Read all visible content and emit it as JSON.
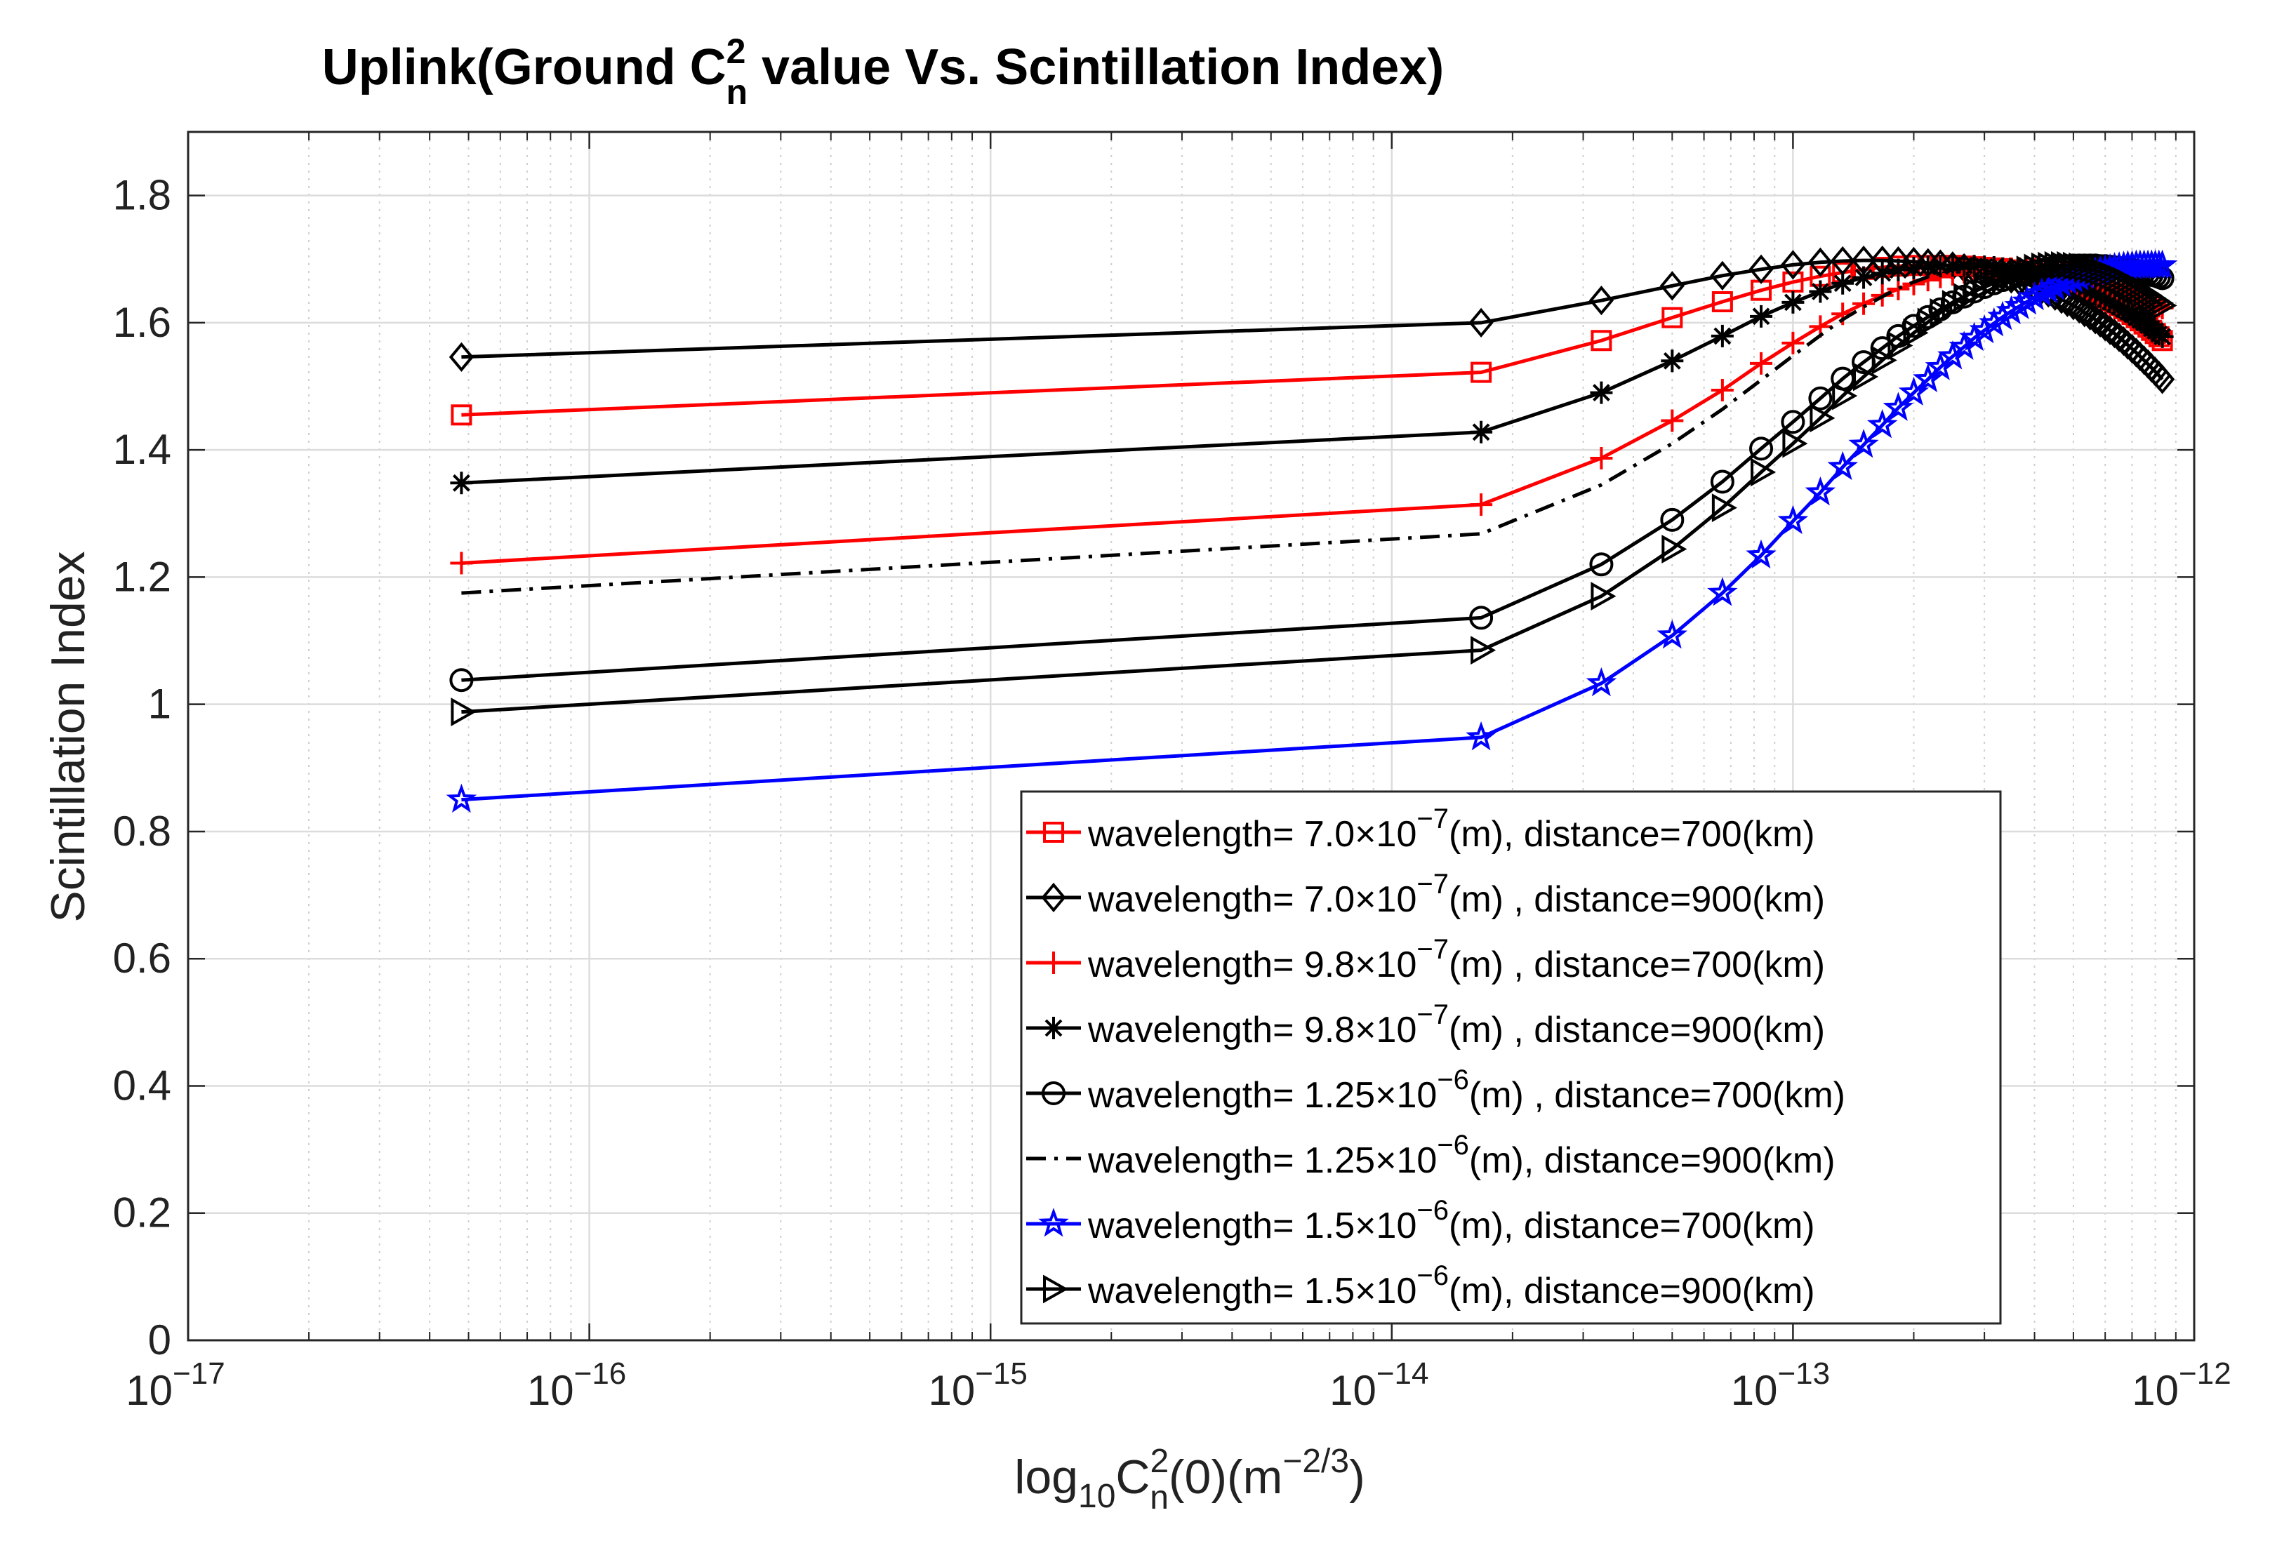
{
  "chart_data": {
    "type": "line",
    "title": {
      "main": "Uplink(Ground C",
      "sup": "2",
      "sub": "n",
      "rest": " value Vs. Scintillation Index)"
    },
    "xlabel": {
      "pre": "log",
      "sub1": "10",
      "mid": "C",
      "sup": "2",
      "sub2": "n",
      "mid2": "(0)(m",
      "sup2": "−2/3",
      "post": ")"
    },
    "ylabel": "Scintillation Index",
    "xscale": "log",
    "xlim": [
      1e-17,
      1e-12
    ],
    "ylim": [
      0,
      1.9
    ],
    "grid": true,
    "legend_position": "bottom-right",
    "x_ticks": [
      {
        "value": 1e-17,
        "base": "10",
        "exp": "−17"
      },
      {
        "value": 1e-16,
        "base": "10",
        "exp": "−16"
      },
      {
        "value": 1e-15,
        "base": "10",
        "exp": "−15"
      },
      {
        "value": 1e-14,
        "base": "10",
        "exp": "−14"
      },
      {
        "value": 1e-13,
        "base": "10",
        "exp": "−13"
      },
      {
        "value": 1e-12,
        "base": "10",
        "exp": "−12"
      }
    ],
    "y_ticks": [
      {
        "value": 0,
        "label": "0"
      },
      {
        "value": 0.2,
        "label": "0.2"
      },
      {
        "value": 0.4,
        "label": "0.4"
      },
      {
        "value": 0.6,
        "label": "0.6"
      },
      {
        "value": 0.8,
        "label": "0.8"
      },
      {
        "value": 1.0,
        "label": "1"
      },
      {
        "value": 1.2,
        "label": "1.2"
      },
      {
        "value": 1.4,
        "label": "1.4"
      },
      {
        "value": 1.6,
        "label": "1.6"
      },
      {
        "value": 1.8,
        "label": "1.8"
      }
    ],
    "x": [
      4.8e-17,
      1.67e-14,
      3.33e-14,
      5e-14,
      6.67e-14,
      8.33e-14,
      1e-13,
      1.17e-13,
      1.33e-13,
      1.5e-13,
      1.67e-13,
      1.83e-13,
      2e-13,
      2.17e-13,
      2.33e-13,
      2.5e-13,
      2.67e-13,
      2.83e-13,
      3e-13,
      3.17e-13,
      3.33e-13,
      3.5e-13,
      3.67e-13,
      3.83e-13,
      4e-13,
      4.17e-13,
      4.33e-13,
      4.5e-13,
      4.67e-13,
      4.83e-13,
      5e-13,
      5.17e-13,
      5.33e-13,
      5.5e-13,
      5.67e-13,
      5.83e-13,
      6e-13,
      6.17e-13,
      6.33e-13,
      6.5e-13,
      6.67e-13,
      6.83e-13,
      7e-13,
      7.17e-13,
      7.33e-13,
      7.5e-13,
      7.67e-13,
      7.83e-13,
      8e-13,
      8.17e-13,
      8.33e-13
    ],
    "series": [
      {
        "name": "wavelength= 7.0×10⁻⁷(m), distance=700(km)",
        "legend": {
          "a": "wavelength= 7.0×10",
          "exp": "−7",
          "b": "(m), distance=700(km)"
        },
        "color": "#ff0000",
        "marker": "square",
        "dash": "solid",
        "values": [
          1.455,
          1.522,
          1.572,
          1.608,
          1.633,
          1.651,
          1.664,
          1.673,
          1.679,
          1.684,
          1.687,
          1.689,
          1.69,
          1.69,
          1.69,
          1.69,
          1.689,
          1.688,
          1.687,
          1.686,
          1.685,
          1.683,
          1.681,
          1.679,
          1.677,
          1.675,
          1.672,
          1.67,
          1.667,
          1.664,
          1.661,
          1.658,
          1.654,
          1.651,
          1.647,
          1.643,
          1.639,
          1.635,
          1.631,
          1.627,
          1.622,
          1.618,
          1.613,
          1.608,
          1.603,
          1.598,
          1.593,
          1.588,
          1.583,
          1.578,
          1.572
        ]
      },
      {
        "name": "wavelength= 7.0×10⁻⁷(m) , distance=900(km)",
        "legend": {
          "a": "wavelength= 7.0×10",
          "exp": "−7",
          "b": "(m) , distance=900(km)"
        },
        "color": "#000000",
        "marker": "diamond",
        "dash": "solid",
        "values": [
          1.546,
          1.6,
          1.635,
          1.658,
          1.674,
          1.684,
          1.691,
          1.695,
          1.697,
          1.698,
          1.698,
          1.697,
          1.696,
          1.694,
          1.692,
          1.689,
          1.686,
          1.683,
          1.68,
          1.677,
          1.673,
          1.669,
          1.665,
          1.661,
          1.656,
          1.652,
          1.647,
          1.642,
          1.637,
          1.632,
          1.627,
          1.622,
          1.616,
          1.611,
          1.605,
          1.6,
          1.594,
          1.588,
          1.583,
          1.577,
          1.571,
          1.565,
          1.559,
          1.553,
          1.547,
          1.541,
          1.535,
          1.529,
          1.523,
          1.517,
          1.511
        ]
      },
      {
        "name": "wavelength= 9.8×10⁻⁷(m) , distance=700(km)",
        "legend": {
          "a": "wavelength= 9.8×10",
          "exp": "−7",
          "b": "(m) , distance=700(km)"
        },
        "color": "#ff0000",
        "marker": "plus",
        "dash": "solid",
        "values": [
          1.222,
          1.314,
          1.387,
          1.446,
          1.494,
          1.536,
          1.568,
          1.594,
          1.614,
          1.63,
          1.643,
          1.653,
          1.661,
          1.667,
          1.672,
          1.676,
          1.679,
          1.681,
          1.683,
          1.684,
          1.685,
          1.685,
          1.685,
          1.685,
          1.684,
          1.683,
          1.682,
          1.681,
          1.68,
          1.678,
          1.676,
          1.674,
          1.672,
          1.67,
          1.668,
          1.666,
          1.663,
          1.661,
          1.658,
          1.656,
          1.653,
          1.65,
          1.647,
          1.644,
          1.641,
          1.638,
          1.635,
          1.632,
          1.629,
          1.626,
          1.623
        ]
      },
      {
        "name": "wavelength= 9.8×10⁻⁷(m)  , distance=900(km)",
        "legend": {
          "a": "wavelength= 9.8×10",
          "exp": "−7",
          "b": "(m)  , distance=900(km)"
        },
        "color": "#000000",
        "marker": "asterisk",
        "dash": "solid",
        "values": [
          1.348,
          1.428,
          1.49,
          1.54,
          1.579,
          1.61,
          1.632,
          1.649,
          1.662,
          1.671,
          1.678,
          1.683,
          1.686,
          1.688,
          1.689,
          1.69,
          1.69,
          1.689,
          1.688,
          1.687,
          1.685,
          1.683,
          1.681,
          1.679,
          1.677,
          1.674,
          1.671,
          1.668,
          1.665,
          1.662,
          1.659,
          1.655,
          1.652,
          1.648,
          1.645,
          1.641,
          1.637,
          1.633,
          1.629,
          1.625,
          1.621,
          1.617,
          1.613,
          1.608,
          1.604,
          1.6,
          1.596,
          1.591,
          1.587,
          1.582,
          1.578
        ]
      },
      {
        "name": "wavelength= 1.25×10⁻⁶(m) , distance=700(km)",
        "legend": {
          "a": "wavelength= 1.25×10",
          "exp": "−6",
          "b": "(m) , distance=700(km)"
        },
        "color": "#000000",
        "marker": "circle",
        "dash": "solid",
        "values": [
          1.038,
          1.136,
          1.22,
          1.29,
          1.35,
          1.402,
          1.444,
          1.481,
          1.512,
          1.538,
          1.56,
          1.579,
          1.595,
          1.609,
          1.621,
          1.632,
          1.641,
          1.649,
          1.656,
          1.662,
          1.667,
          1.671,
          1.675,
          1.678,
          1.681,
          1.683,
          1.685,
          1.687,
          1.688,
          1.689,
          1.69,
          1.69,
          1.69,
          1.69,
          1.69,
          1.689,
          1.689,
          1.688,
          1.687,
          1.686,
          1.685,
          1.684,
          1.683,
          1.682,
          1.68,
          1.679,
          1.677,
          1.675,
          1.674,
          1.672,
          1.67
        ]
      },
      {
        "name": "wavelength= 1.25×10⁻⁶(m), distance=900(km)",
        "legend": {
          "a": "wavelength= 1.25×10",
          "exp": "−6",
          "b": "(m), distance=900(km)"
        },
        "color": "#000000",
        "marker": "none",
        "dash": "dashdot",
        "values": [
          1.175,
          1.268,
          1.345,
          1.41,
          1.464,
          1.51,
          1.548,
          1.58,
          1.605,
          1.625,
          1.641,
          1.654,
          1.664,
          1.672,
          1.678,
          1.683,
          1.686,
          1.689,
          1.69,
          1.691,
          1.691,
          1.691,
          1.69,
          1.689,
          1.688,
          1.686,
          1.684,
          1.682,
          1.68,
          1.677,
          1.674,
          1.671,
          1.668,
          1.665,
          1.662,
          1.658,
          1.655,
          1.651,
          1.648,
          1.644,
          1.64,
          1.636,
          1.632,
          1.628,
          1.624,
          1.62,
          1.616,
          1.612,
          1.608,
          1.604,
          1.6
        ]
      },
      {
        "name": "wavelength= 1.5×10⁻⁶(m), distance=700(km)",
        "legend": {
          "a": "wavelength= 1.5×10",
          "exp": "−6",
          "b": "(m), distance=700(km)"
        },
        "color": "#0000ff",
        "marker": "star",
        "dash": "solid",
        "values": [
          0.85,
          0.948,
          1.033,
          1.108,
          1.175,
          1.234,
          1.288,
          1.333,
          1.373,
          1.408,
          1.439,
          1.466,
          1.49,
          1.511,
          1.53,
          1.547,
          1.562,
          1.576,
          1.588,
          1.599,
          1.609,
          1.618,
          1.626,
          1.633,
          1.64,
          1.646,
          1.651,
          1.656,
          1.661,
          1.665,
          1.668,
          1.671,
          1.674,
          1.677,
          1.679,
          1.681,
          1.683,
          1.684,
          1.686,
          1.687,
          1.688,
          1.689,
          1.689,
          1.69,
          1.69,
          1.69,
          1.69,
          1.69,
          1.69,
          1.69,
          1.69
        ]
      },
      {
        "name": "wavelength= 1.5×10⁻⁶(m), distance=900(km)",
        "legend": {
          "a": "wavelength= 1.5×10",
          "exp": "−6",
          "b": "(m), distance=900(km)"
        },
        "color": "#000000",
        "marker": "triangle-right",
        "dash": "solid",
        "values": [
          0.988,
          1.085,
          1.17,
          1.244,
          1.309,
          1.365,
          1.41,
          1.45,
          1.485,
          1.515,
          1.541,
          1.564,
          1.584,
          1.601,
          1.616,
          1.629,
          1.64,
          1.65,
          1.658,
          1.665,
          1.671,
          1.676,
          1.68,
          1.683,
          1.686,
          1.688,
          1.689,
          1.69,
          1.69,
          1.69,
          1.689,
          1.688,
          1.686,
          1.684,
          1.682,
          1.68,
          1.677,
          1.674,
          1.671,
          1.668,
          1.665,
          1.662,
          1.658,
          1.655,
          1.651,
          1.647,
          1.643,
          1.639,
          1.635,
          1.631,
          1.627
        ]
      }
    ]
  }
}
